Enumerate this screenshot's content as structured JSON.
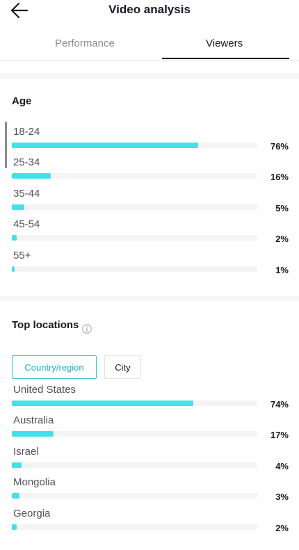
{
  "header": {
    "title": "Video analysis",
    "back_icon": "arrow-left-icon"
  },
  "tabs": [
    {
      "label": "Performance",
      "active": false
    },
    {
      "label": "Viewers",
      "active": true
    }
  ],
  "age": {
    "title": "Age",
    "rows": [
      {
        "label": "18-24",
        "percent": "76%",
        "value": 76
      },
      {
        "label": "25-34",
        "percent": "16%",
        "value": 16
      },
      {
        "label": "35-44",
        "percent": "5%",
        "value": 5
      },
      {
        "label": "45-54",
        "percent": "2%",
        "value": 2
      },
      {
        "label": "55+",
        "percent": "1%",
        "value": 1
      }
    ]
  },
  "locations": {
    "title": "Top locations",
    "info_icon": "info-circle-icon",
    "filters": [
      {
        "label": "Country/region",
        "selected": true
      },
      {
        "label": "City",
        "selected": false
      }
    ],
    "rows": [
      {
        "label": "United States",
        "percent": "74%",
        "value": 74
      },
      {
        "label": "Australia",
        "percent": "17%",
        "value": 17
      },
      {
        "label": "Israel",
        "percent": "4%",
        "value": 4
      },
      {
        "label": "Mongolia",
        "percent": "3%",
        "value": 3
      },
      {
        "label": "Georgia",
        "percent": "2%",
        "value": 2
      }
    ]
  },
  "colors": {
    "accent": "#46e0ea",
    "accent_text": "#1bb5be",
    "track": "#f4f4f5"
  }
}
